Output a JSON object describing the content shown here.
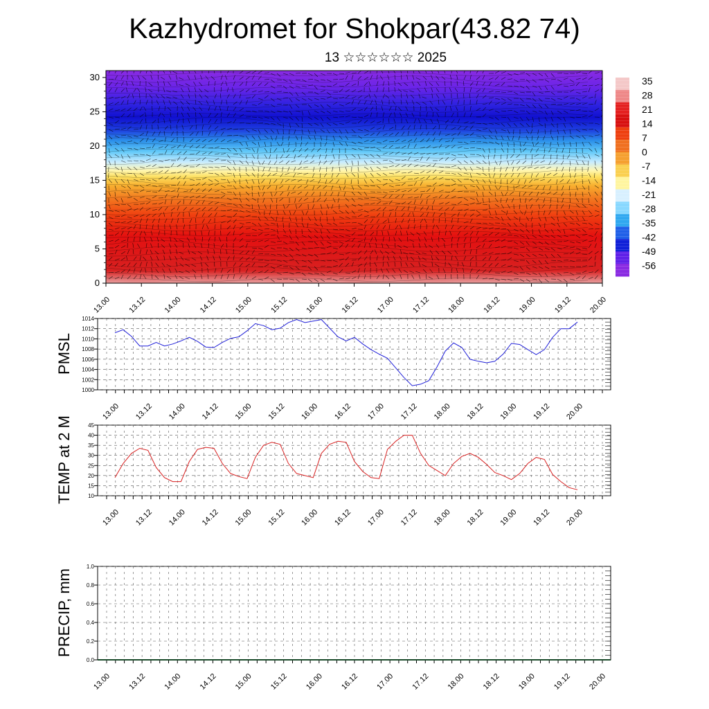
{
  "title": "Kazhydromet for Shokpar(43.82 74)",
  "subtitle": "13 ☆☆☆☆☆☆ 2025",
  "colors": {
    "pmsl_line": "#1f1fd8",
    "temp_line": "#d81f1f",
    "precip_line": "#1a4a2a",
    "frame": "#000000",
    "grid": "#555555"
  },
  "chart_data": [
    {
      "type": "heatmap",
      "name": "vertical cross-section",
      "x_ticks": [
        "13.00",
        "13.12",
        "14.00",
        "14.12",
        "15.00",
        "15.12",
        "16.00",
        "16.12",
        "17.00",
        "17.12",
        "18.00",
        "18.12",
        "19.00",
        "19.12",
        "20.00"
      ],
      "y_ticks": [
        "0",
        "5",
        "10",
        "15",
        "20",
        "25",
        "30"
      ],
      "ylim": [
        0,
        31
      ],
      "colorbar_labels": [
        "35",
        "28",
        "21",
        "14",
        "7",
        "0",
        "-7",
        "-14",
        "-21",
        "-28",
        "-35",
        "-42",
        "-49",
        "-56"
      ],
      "colorbar_colors": [
        "#f4c8c8",
        "#ee8888",
        "#e42020",
        "#d81010",
        "#ee4010",
        "#f07020",
        "#f5a030",
        "#fad050",
        "#fff5a0",
        "#d8f0ff",
        "#88d8ff",
        "#30a8f0",
        "#2060e8",
        "#1020d8",
        "#6020e8",
        "#8a2be2"
      ],
      "overlay": "wind barbs"
    },
    {
      "type": "line",
      "ylabel": "PMSL",
      "x_ticks": [
        "13.00",
        "13.12",
        "14.00",
        "14.12",
        "15.00",
        "15.12",
        "16.00",
        "16.12",
        "17.00",
        "17.12",
        "18.00",
        "18.12",
        "19.00",
        "19.12",
        "20.00"
      ],
      "y_ticks": [
        "1014",
        "1012",
        "1010",
        "1008",
        "1006",
        "1004",
        "1002",
        "1000"
      ],
      "ylim": [
        1000,
        1014
      ],
      "series": [
        {
          "values": [
            1011.2,
            1011.8,
            1010.5,
            1008.6,
            1008.6,
            1009.3,
            1008.6,
            1009.0,
            1009.6,
            1010.3,
            1009.5,
            1008.4,
            1008.3,
            1009.3,
            1010.1,
            1010.4,
            1011.6,
            1013.0,
            1012.6,
            1011.8,
            1012.1,
            1013.2,
            1013.8,
            1013.2,
            1013.5,
            1013.8,
            1012.1,
            1010.4,
            1009.6,
            1010.3,
            1009.0,
            1007.9,
            1007.0,
            1006.2,
            1004.3,
            1002.4,
            1000.8,
            1001.1,
            1001.8,
            1004.5,
            1007.6,
            1009.2,
            1008.3,
            1006.0,
            1005.6,
            1005.3,
            1005.6,
            1007.0,
            1009.1,
            1008.9,
            1007.9,
            1006.9,
            1007.9,
            1010.3,
            1012.0,
            1012.0,
            1013.3
          ]
        }
      ]
    },
    {
      "type": "line",
      "ylabel": "TEMP at 2 M",
      "x_ticks": [
        "13.00",
        "13.12",
        "14.00",
        "14.12",
        "15.00",
        "15.12",
        "16.00",
        "16.12",
        "17.00",
        "17.12",
        "18.00",
        "18.12",
        "19.00",
        "19.12",
        "20.00"
      ],
      "y_ticks": [
        "45",
        "40",
        "35",
        "30",
        "25",
        "20",
        "15",
        "10"
      ],
      "ylim": [
        10,
        45
      ],
      "series": [
        {
          "values": [
            19,
            26,
            31,
            33.5,
            32.5,
            24,
            19,
            17,
            17,
            27,
            33,
            34,
            33.5,
            26,
            21,
            19.5,
            18.5,
            29,
            35,
            36.5,
            35.5,
            26,
            21,
            20,
            19,
            31,
            35.5,
            37,
            36.5,
            27,
            22,
            19,
            18.5,
            33,
            37,
            40,
            40,
            31,
            25,
            22.5,
            20,
            26,
            29.5,
            31,
            29,
            25.5,
            21.5,
            20,
            18,
            21,
            26,
            29,
            28,
            20.5,
            17,
            14,
            13
          ]
        }
      ]
    },
    {
      "type": "line",
      "ylabel": "PRECIP, mm",
      "x_ticks": [
        "13.00",
        "13.12",
        "14.00",
        "14.12",
        "15.00",
        "15.12",
        "16.00",
        "16.12",
        "17.00",
        "17.12",
        "18.00",
        "18.12",
        "19.00",
        "19.12",
        "20.00"
      ],
      "y_ticks": [
        "1.0",
        "0.8",
        "0.6",
        "0.4",
        "0.2",
        "0.0"
      ],
      "ylim": [
        0,
        1
      ],
      "series": [
        {
          "values": [
            0,
            0,
            0,
            0,
            0,
            0,
            0,
            0,
            0,
            0,
            0,
            0,
            0,
            0,
            0
          ]
        }
      ]
    }
  ]
}
